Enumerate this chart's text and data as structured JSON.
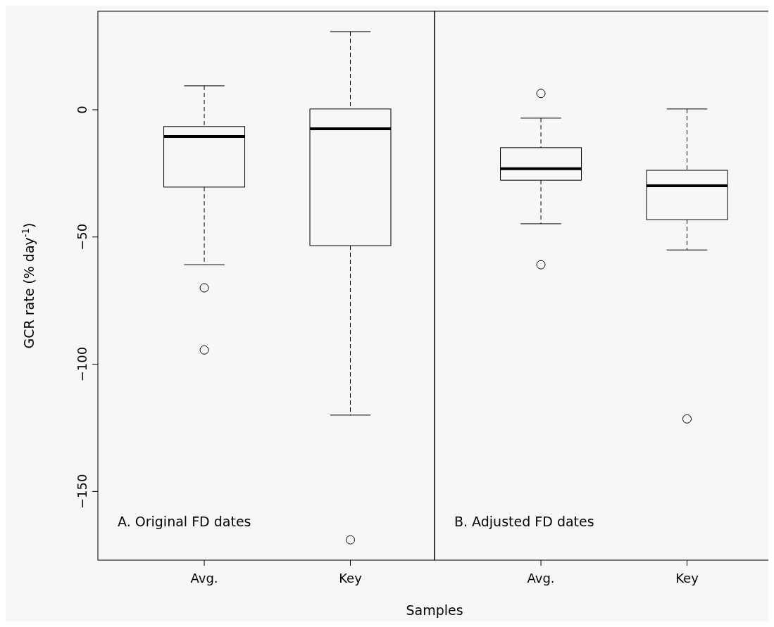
{
  "chart_data": [
    {
      "type": "box",
      "categories": [
        "Avg.",
        "Key"
      ],
      "ylabel": "GCR rate (% day$^{-1}$)",
      "xlabel": "Samples",
      "annotations": [
        "A. Original FD dates"
      ],
      "ylim": [
        -177,
        38.7
      ],
      "yticks": [
        {
          "value": -150,
          "label": "−150"
        },
        {
          "value": -100,
          "label": "−100"
        },
        {
          "value": -50,
          "label": "−50"
        },
        0
      ],
      "boxes": [
        {
          "low": -60.9,
          "q1": -30.4,
          "median": -10.5,
          "q3": -6.6,
          "high": 9.4,
          "outliers": [
            -70,
            -94.4
          ]
        },
        {
          "low": -120,
          "q1": -53.4,
          "median": -7.5,
          "q3": 0.3,
          "high": 30.7,
          "outliers": [
            -169
          ]
        }
      ]
    },
    {
      "type": "box",
      "categories": [
        "Avg.",
        "Key"
      ],
      "annotations": [
        "B. Adjusted FD dates"
      ],
      "ylim": [
        -177,
        38.7
      ],
      "tick_labels": "x",
      "boxes": [
        {
          "low": -44.8,
          "q1": -27.7,
          "median": -23.2,
          "q3": -14.9,
          "high": -3.3,
          "outliers": [
            6.4,
            -60.9
          ]
        },
        {
          "low": -55.1,
          "q1": -43.2,
          "median": -29.9,
          "q3": -23.8,
          "high": 0.3,
          "outliers": [
            -121.5
          ]
        }
      ]
    }
  ]
}
